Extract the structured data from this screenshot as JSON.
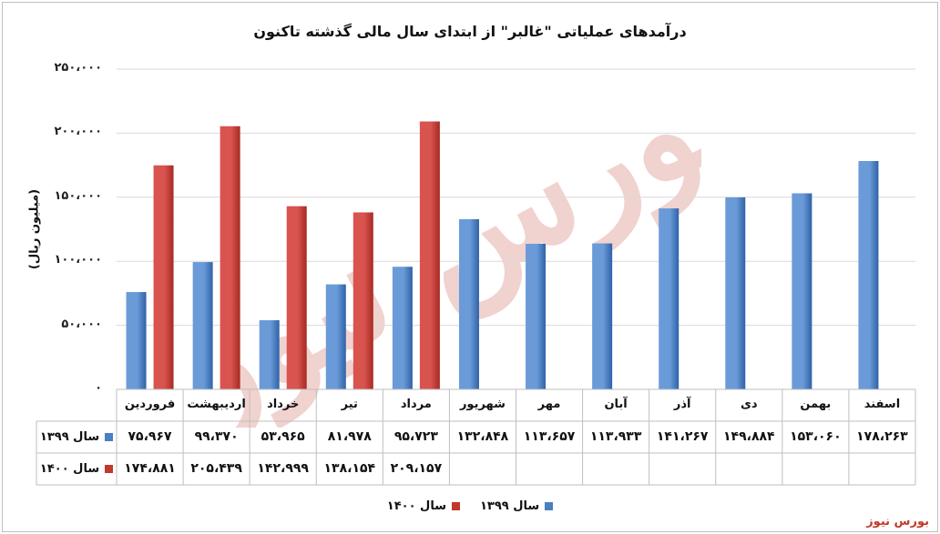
{
  "title": "درآمدهای عملیاتی \"غالبر\" از ابتدای سال مالی گذشته تاکنون",
  "source": "بورس نیوز",
  "watermark_text": "بورس نیوز",
  "colors": {
    "series1": "#4a7fc1",
    "series2": "#c0392b",
    "grid": "#d9d9d9",
    "watermark": "#c0392b"
  },
  "chart_data": {
    "type": "bar",
    "title": "درآمدهای عملیاتی \"غالبر\" از ابتدای سال مالی گذشته تاکنون",
    "ylabel": "(میلیون ریال)",
    "ylim": [
      0,
      250000
    ],
    "y_ticks": [
      0,
      50000,
      100000,
      150000,
      200000,
      250000
    ],
    "y_tick_labels": [
      "۰",
      "۵۰،۰۰۰",
      "۱۰۰،۰۰۰",
      "۱۵۰،۰۰۰",
      "۲۰۰،۰۰۰",
      "۲۵۰،۰۰۰"
    ],
    "grid": true,
    "legend_position": "bottom",
    "categories": [
      "فروردین",
      "اردیبهشت",
      "خرداد",
      "تیر",
      "مرداد",
      "شهریور",
      "مهر",
      "آبان",
      "آذر",
      "دی",
      "بهمن",
      "اسفند"
    ],
    "series": [
      {
        "name": "سال ۱۳۹۹",
        "values": [
          75967,
          99370,
          53965,
          81978,
          95723,
          132848,
          113657,
          113933,
          141267,
          149884,
          153060,
          178263
        ],
        "labels": [
          "۷۵،۹۶۷",
          "۹۹،۳۷۰",
          "۵۳،۹۶۵",
          "۸۱،۹۷۸",
          "۹۵،۷۲۳",
          "۱۳۲،۸۴۸",
          "۱۱۳،۶۵۷",
          "۱۱۳،۹۳۳",
          "۱۴۱،۲۶۷",
          "۱۴۹،۸۸۴",
          "۱۵۳،۰۶۰",
          "۱۷۸،۲۶۳"
        ]
      },
      {
        "name": "سال ۱۴۰۰",
        "values": [
          174881,
          205439,
          142999,
          138154,
          209157,
          null,
          null,
          null,
          null,
          null,
          null,
          null
        ],
        "labels": [
          "۱۷۴،۸۸۱",
          "۲۰۵،۴۳۹",
          "۱۴۲،۹۹۹",
          "۱۳۸،۱۵۴",
          "۲۰۹،۱۵۷",
          "",
          "",
          "",
          "",
          "",
          "",
          ""
        ]
      }
    ]
  }
}
